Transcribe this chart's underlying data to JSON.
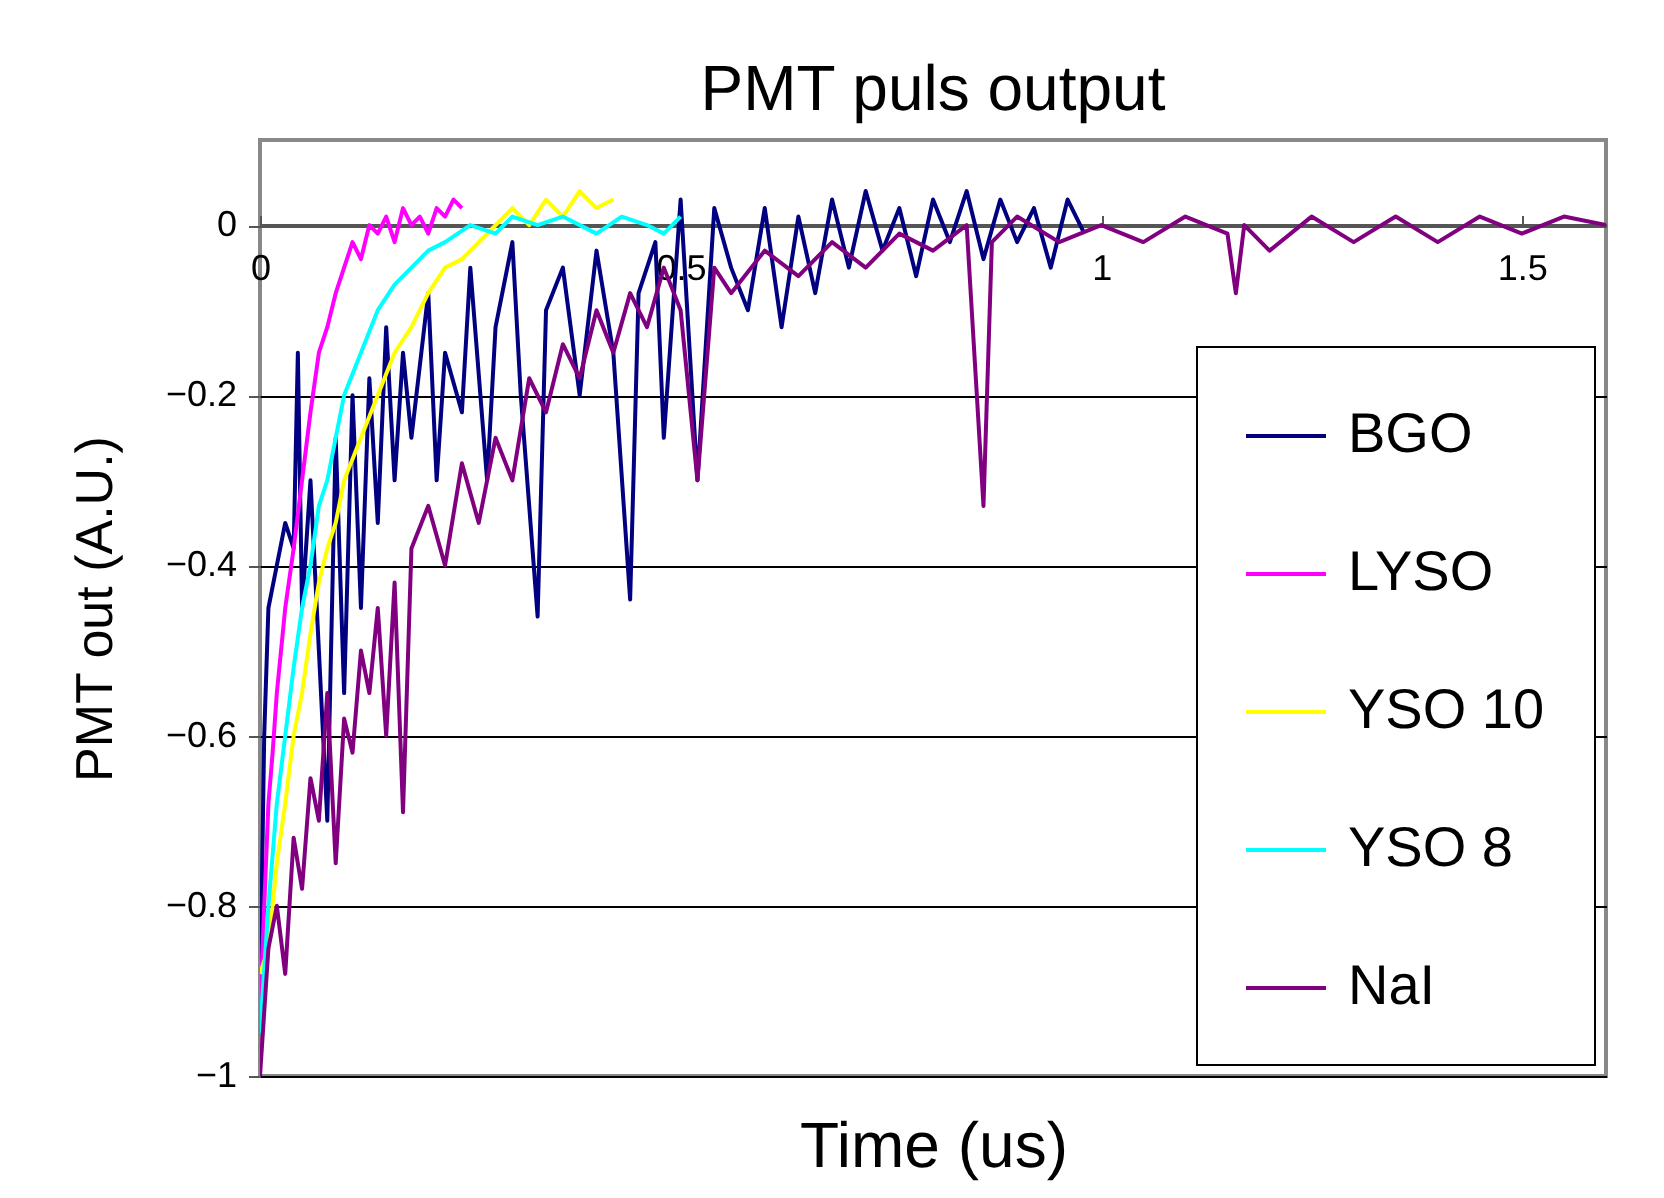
{
  "chart_data": {
    "type": "line",
    "title": "PMT puls output",
    "xlabel": "Time (us)",
    "ylabel": "PMT out (A.U.)",
    "xlim": [
      0,
      1.6
    ],
    "ylim": [
      -1,
      0.1
    ],
    "xticks": [
      0,
      0.5,
      1,
      1.5
    ],
    "yticks": [
      0,
      -0.2,
      -0.4,
      -0.6,
      -0.8,
      -1
    ],
    "grid": "y",
    "legend": "bottom right",
    "series": [
      {
        "name": "BGO",
        "color": "#000080",
        "x": [
          0,
          0.005,
          0.01,
          0.02,
          0.03,
          0.04,
          0.045,
          0.05,
          0.06,
          0.07,
          0.08,
          0.09,
          0.1,
          0.11,
          0.12,
          0.13,
          0.14,
          0.15,
          0.16,
          0.17,
          0.18,
          0.2,
          0.21,
          0.22,
          0.24,
          0.25,
          0.27,
          0.28,
          0.3,
          0.31,
          0.33,
          0.34,
          0.36,
          0.38,
          0.4,
          0.42,
          0.44,
          0.45,
          0.47,
          0.48,
          0.5,
          0.52,
          0.54,
          0.56,
          0.58,
          0.6,
          0.62,
          0.64,
          0.66,
          0.68,
          0.7,
          0.72,
          0.74,
          0.76,
          0.78,
          0.8,
          0.82,
          0.84,
          0.86,
          0.88,
          0.9,
          0.92,
          0.94,
          0.96,
          0.98
        ],
        "values": [
          -0.92,
          -0.6,
          -0.45,
          -0.4,
          -0.35,
          -0.38,
          -0.15,
          -0.45,
          -0.3,
          -0.5,
          -0.7,
          -0.25,
          -0.55,
          -0.2,
          -0.45,
          -0.18,
          -0.35,
          -0.12,
          -0.3,
          -0.15,
          -0.25,
          -0.08,
          -0.3,
          -0.15,
          -0.22,
          -0.05,
          -0.3,
          -0.12,
          -0.02,
          -0.2,
          -0.46,
          -0.1,
          -0.05,
          -0.2,
          -0.03,
          -0.15,
          -0.44,
          -0.08,
          -0.02,
          -0.25,
          0.03,
          -0.3,
          0.02,
          -0.05,
          -0.1,
          0.02,
          -0.12,
          0.01,
          -0.08,
          0.03,
          -0.05,
          0.04,
          -0.03,
          0.02,
          -0.06,
          0.03,
          -0.02,
          0.04,
          -0.04,
          0.03,
          -0.02,
          0.02,
          -0.05,
          0.03,
          -0.01
        ]
      },
      {
        "name": "LYSO",
        "color": "#ff00ff",
        "x": [
          0,
          0.005,
          0.01,
          0.015,
          0.02,
          0.03,
          0.04,
          0.05,
          0.06,
          0.07,
          0.08,
          0.09,
          0.1,
          0.11,
          0.12,
          0.13,
          0.14,
          0.15,
          0.16,
          0.17,
          0.18,
          0.19,
          0.2,
          0.21,
          0.22,
          0.23,
          0.24
        ],
        "values": [
          -0.93,
          -0.8,
          -0.68,
          -0.62,
          -0.55,
          -0.45,
          -0.38,
          -0.3,
          -0.22,
          -0.15,
          -0.12,
          -0.08,
          -0.05,
          -0.02,
          -0.04,
          0,
          -0.01,
          0.01,
          -0.02,
          0.02,
          0,
          0.01,
          -0.01,
          0.02,
          0.01,
          0.03,
          0.02
        ]
      },
      {
        "name": "YSO 10",
        "color": "#ffff00",
        "x": [
          0,
          0.01,
          0.02,
          0.03,
          0.04,
          0.05,
          0.06,
          0.07,
          0.08,
          0.09,
          0.1,
          0.12,
          0.14,
          0.16,
          0.18,
          0.2,
          0.22,
          0.24,
          0.26,
          0.28,
          0.3,
          0.32,
          0.34,
          0.36,
          0.38,
          0.4,
          0.42
        ],
        "values": [
          -0.88,
          -0.85,
          -0.75,
          -0.68,
          -0.6,
          -0.55,
          -0.48,
          -0.42,
          -0.38,
          -0.35,
          -0.3,
          -0.25,
          -0.2,
          -0.15,
          -0.12,
          -0.08,
          -0.05,
          -0.04,
          -0.02,
          0,
          0.02,
          0,
          0.03,
          0.01,
          0.04,
          0.02,
          0.03
        ]
      },
      {
        "name": "YSO 8",
        "color": "#00ffff",
        "x": [
          0,
          0.01,
          0.02,
          0.03,
          0.04,
          0.05,
          0.06,
          0.07,
          0.08,
          0.09,
          0.1,
          0.12,
          0.14,
          0.16,
          0.18,
          0.2,
          0.22,
          0.25,
          0.28,
          0.3,
          0.33,
          0.36,
          0.4,
          0.43,
          0.46,
          0.48,
          0.5
        ],
        "values": [
          -0.95,
          -0.8,
          -0.68,
          -0.6,
          -0.52,
          -0.45,
          -0.4,
          -0.33,
          -0.3,
          -0.25,
          -0.2,
          -0.15,
          -0.1,
          -0.07,
          -0.05,
          -0.03,
          -0.02,
          0,
          -0.01,
          0.01,
          0,
          0.01,
          -0.01,
          0.01,
          0,
          -0.01,
          0.01
        ]
      },
      {
        "name": "NaI",
        "color": "#800080",
        "x": [
          0,
          0.01,
          0.02,
          0.03,
          0.04,
          0.05,
          0.06,
          0.07,
          0.08,
          0.09,
          0.1,
          0.11,
          0.12,
          0.13,
          0.14,
          0.15,
          0.16,
          0.17,
          0.18,
          0.2,
          0.22,
          0.24,
          0.26,
          0.28,
          0.3,
          0.32,
          0.34,
          0.36,
          0.38,
          0.4,
          0.42,
          0.44,
          0.46,
          0.48,
          0.5,
          0.52,
          0.54,
          0.56,
          0.6,
          0.64,
          0.68,
          0.72,
          0.76,
          0.8,
          0.84,
          0.86,
          0.87,
          0.9,
          0.95,
          1,
          1.05,
          1.1,
          1.15,
          1.16,
          1.17,
          1.2,
          1.25,
          1.3,
          1.35,
          1.4,
          1.45,
          1.5,
          1.55,
          1.6
        ],
        "values": [
          -1,
          -0.85,
          -0.8,
          -0.88,
          -0.72,
          -0.78,
          -0.65,
          -0.7,
          -0.55,
          -0.75,
          -0.58,
          -0.62,
          -0.5,
          -0.55,
          -0.45,
          -0.6,
          -0.42,
          -0.69,
          -0.38,
          -0.33,
          -0.4,
          -0.28,
          -0.35,
          -0.25,
          -0.3,
          -0.18,
          -0.22,
          -0.14,
          -0.18,
          -0.1,
          -0.15,
          -0.08,
          -0.12,
          -0.05,
          -0.1,
          -0.3,
          -0.05,
          -0.08,
          -0.03,
          -0.06,
          -0.02,
          -0.05,
          -0.01,
          -0.03,
          0,
          -0.33,
          -0.02,
          0.01,
          -0.02,
          0,
          -0.02,
          0.01,
          -0.01,
          -0.08,
          0,
          -0.03,
          0.01,
          -0.02,
          0.01,
          -0.02,
          0.01,
          -0.01,
          0.01,
          0
        ]
      }
    ]
  }
}
